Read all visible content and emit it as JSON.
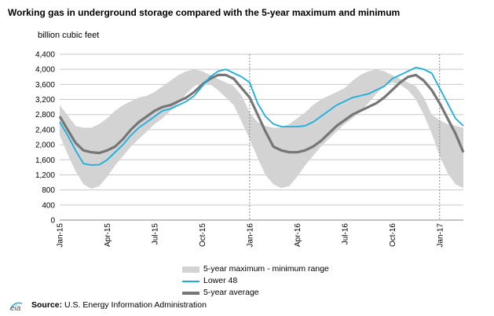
{
  "title": "Working gas in underground storage compared with the  5-year maximum and minimum",
  "unit_label": "billion  cubic feet",
  "legend": {
    "range": "5-year maximum - minimum range",
    "lower48": "Lower 48",
    "average": "5-year average"
  },
  "source": {
    "label": "Source:",
    "text": "U.S. Energy Information Administration",
    "logo_text": "eia"
  },
  "colors": {
    "range": "#d3d3d3",
    "lower48": "#1aaee0",
    "average": "#767676",
    "grid": "#c8c8c8"
  },
  "chart_data": {
    "type": "area",
    "title": "Working gas in underground storage compared with the  5-year maximum and minimum",
    "ylabel": "billion  cubic feet",
    "ylim": [
      0,
      4400
    ],
    "yticks": [
      0,
      400,
      800,
      1200,
      1600,
      2000,
      2400,
      2800,
      3200,
      3600,
      4000,
      4400
    ],
    "ytick_labels": [
      "0",
      "400",
      "800",
      "1,200",
      "1,600",
      "2,000",
      "2,400",
      "2,800",
      "3,200",
      "3,600",
      "4,000",
      "4,400"
    ],
    "xlim": [
      0,
      25.5
    ],
    "xtick_positions": [
      0,
      3,
      6,
      9,
      12,
      15,
      18,
      21,
      24
    ],
    "xtick_labels": [
      "Jan-15",
      "Apr-15",
      "Jul-15",
      "Oct-15",
      "Jan-16",
      "Apr-16",
      "Jul-16",
      "Oct-16",
      "Jan-17"
    ],
    "grid": true,
    "year_dividers": [
      12,
      24
    ],
    "x": [
      0,
      0.5,
      1,
      1.5,
      2,
      2.5,
      3,
      3.5,
      4,
      4.5,
      5,
      5.5,
      6,
      6.5,
      7,
      7.5,
      8,
      8.5,
      9,
      9.5,
      10,
      10.5,
      11,
      11.5,
      12,
      12.5,
      13,
      13.5,
      14,
      14.5,
      15,
      15.5,
      16,
      16.5,
      17,
      17.5,
      18,
      18.5,
      19,
      19.5,
      20,
      20.5,
      21,
      21.5,
      22,
      22.5,
      23,
      23.5,
      24,
      24.5,
      25,
      25.5
    ],
    "series": [
      {
        "name": "5-year maximum - minimum range",
        "kind": "band",
        "upper": [
          3050,
          2780,
          2500,
          2450,
          2450,
          2550,
          2700,
          2900,
          3050,
          3150,
          3250,
          3300,
          3400,
          3550,
          3700,
          3850,
          3950,
          4000,
          3950,
          3850,
          3750,
          3650,
          3550,
          3300,
          2850,
          2600,
          2500,
          2450,
          2450,
          2550,
          2700,
          2850,
          3050,
          3200,
          3300,
          3400,
          3500,
          3700,
          3850,
          3950,
          4000,
          3950,
          3850,
          3750,
          3650,
          3550,
          3250,
          2800,
          2650,
          2550,
          2500,
          2450
        ],
        "lower": [
          2250,
          1750,
          1300,
          950,
          830,
          900,
          1150,
          1450,
          1700,
          1950,
          2150,
          2350,
          2550,
          2700,
          2900,
          3100,
          3350,
          3550,
          3650,
          3600,
          3450,
          3250,
          3050,
          2600,
          2150,
          1650,
          1200,
          950,
          850,
          900,
          1150,
          1450,
          1700,
          1950,
          2150,
          2350,
          2550,
          2700,
          2900,
          3100,
          3350,
          3550,
          3650,
          3600,
          3450,
          3200,
          2800,
          2300,
          1700,
          1250,
          950,
          850
        ]
      },
      {
        "name": "Lower 48",
        "kind": "line",
        "values": [
          2600,
          2250,
          1850,
          1500,
          1460,
          1470,
          1600,
          1800,
          2000,
          2250,
          2450,
          2600,
          2750,
          2900,
          2950,
          3050,
          3150,
          3300,
          3550,
          3800,
          3950,
          4000,
          3900,
          3800,
          3650,
          3100,
          2750,
          2550,
          2480,
          2480,
          2480,
          2500,
          2600,
          2750,
          2900,
          3050,
          3150,
          3250,
          3300,
          3350,
          3450,
          3550,
          3750,
          3850,
          3950,
          4050,
          4000,
          3900,
          3500,
          3100,
          2700,
          2500
        ]
      },
      {
        "name": "5-year average",
        "kind": "line",
        "values": [
          2750,
          2400,
          2050,
          1850,
          1800,
          1780,
          1850,
          1950,
          2150,
          2400,
          2600,
          2750,
          2900,
          3000,
          3050,
          3150,
          3250,
          3400,
          3600,
          3750,
          3850,
          3850,
          3750,
          3500,
          3250,
          2800,
          2350,
          1950,
          1850,
          1800,
          1800,
          1850,
          1950,
          2100,
          2300,
          2500,
          2650,
          2800,
          2900,
          3000,
          3100,
          3250,
          3450,
          3650,
          3800,
          3850,
          3700,
          3450,
          3100,
          2700,
          2300,
          1800
        ]
      }
    ]
  }
}
